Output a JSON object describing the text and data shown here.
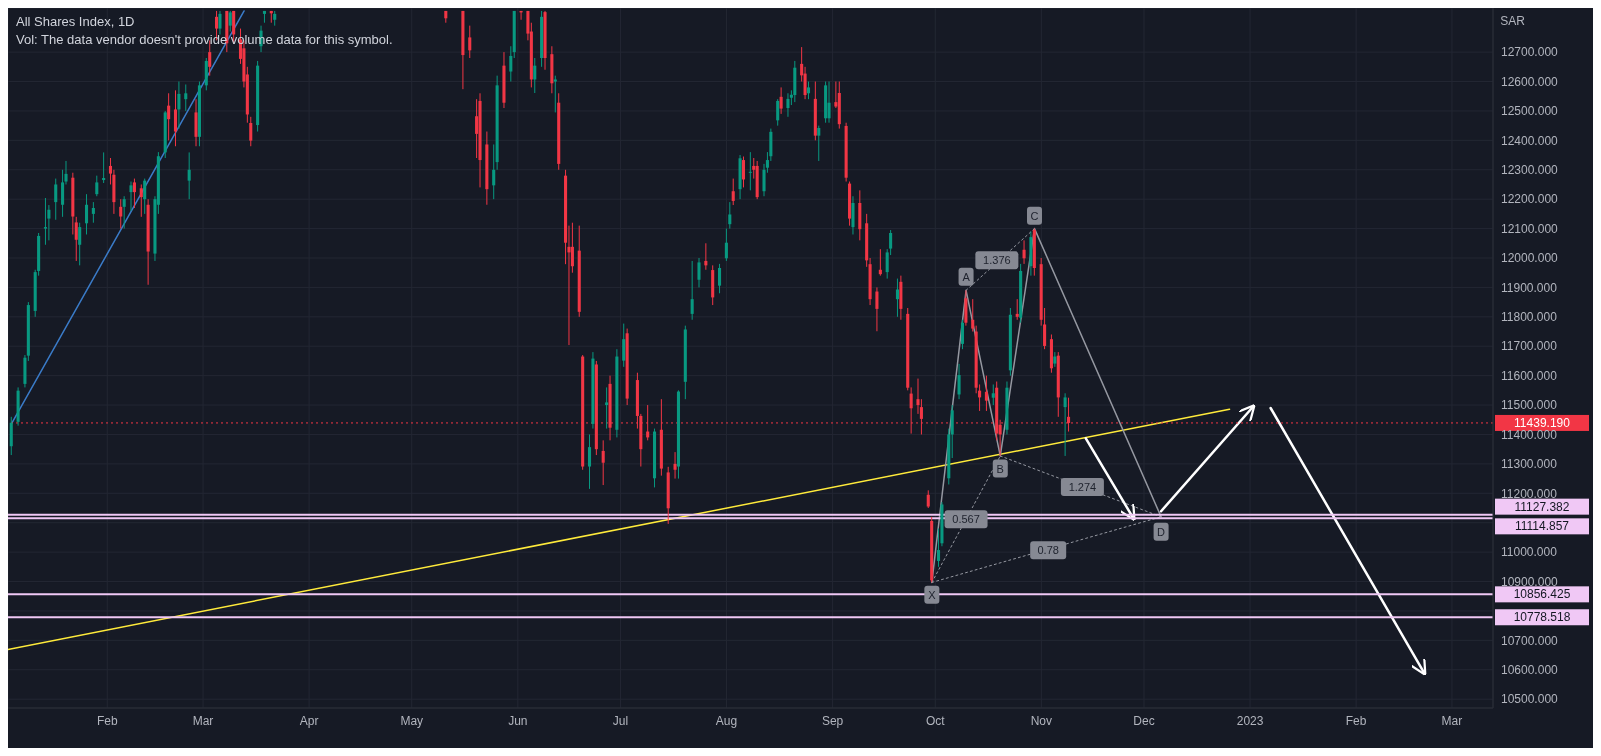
{
  "chart_data": {
    "type": "candlestick",
    "title": "All Shares Index, 1D",
    "subtitle": "Vol: The data vendor doesn't provide volume data for this symbol.",
    "ylabel": "SAR",
    "x": [
      "2022-01-04",
      "2022-01-06",
      "2022-01-08",
      "2022-01-09",
      "2022-01-11",
      "2022-01-12",
      "2022-01-14",
      "2022-01-15",
      "2022-01-17",
      "2022-01-19",
      "2022-01-20",
      "2022-01-22",
      "2022-01-23",
      "2022-01-24",
      "2022-01-26",
      "2022-01-28",
      "2022-01-29",
      "2022-01-31",
      "2022-02-02",
      "2022-02-03",
      "2022-02-05",
      "2022-02-06",
      "2022-02-08",
      "2022-02-09",
      "2022-02-11",
      "2022-02-12",
      "2022-02-13",
      "2022-02-15",
      "2022-02-16",
      "2022-02-18",
      "2022-02-19",
      "2022-02-21",
      "2022-02-22",
      "2022-02-24",
      "2022-02-25",
      "2022-02-27",
      "2022-02-28",
      "2022-03-02",
      "2022-03-03",
      "2022-03-05",
      "2022-03-06",
      "2022-03-08",
      "2022-03-09",
      "2022-03-10",
      "2022-03-12",
      "2022-03-13",
      "2022-03-14",
      "2022-03-15",
      "2022-03-17",
      "2022-03-18",
      "2022-03-19",
      "2022-03-21",
      "2022-03-22",
      "2022-05-11",
      "2022-05-16",
      "2022-05-18",
      "2022-05-20",
      "2022-05-21",
      "2022-05-23",
      "2022-05-25",
      "2022-05-26",
      "2022-05-28",
      "2022-05-30",
      "2022-05-31",
      "2022-06-02",
      "2022-06-04",
      "2022-06-05",
      "2022-06-06",
      "2022-06-08",
      "2022-06-09",
      "2022-06-11",
      "2022-06-12",
      "2022-06-13",
      "2022-06-15",
      "2022-06-16",
      "2022-06-17",
      "2022-06-19",
      "2022-06-20",
      "2022-06-22",
      "2022-06-23",
      "2022-06-24",
      "2022-06-26",
      "2022-06-27",
      "2022-06-28",
      "2022-06-30",
      "2022-07-02",
      "2022-07-03",
      "2022-07-06",
      "2022-07-07",
      "2022-07-09",
      "2022-07-11",
      "2022-07-13",
      "2022-07-15",
      "2022-07-17",
      "2022-07-18",
      "2022-07-20",
      "2022-07-22",
      "2022-07-24",
      "2022-07-26",
      "2022-07-28",
      "2022-07-30",
      "2022-08-01",
      "2022-08-02",
      "2022-08-03",
      "2022-08-05",
      "2022-08-06",
      "2022-08-08",
      "2022-08-09",
      "2022-08-10",
      "2022-08-12",
      "2022-08-13",
      "2022-08-14",
      "2022-08-16",
      "2022-08-17",
      "2022-08-19",
      "2022-08-20",
      "2022-08-21",
      "2022-08-23",
      "2022-08-24",
      "2022-08-25",
      "2022-08-27",
      "2022-08-28",
      "2022-08-30",
      "2022-08-31",
      "2022-09-02",
      "2022-09-03",
      "2022-09-05",
      "2022-09-06",
      "2022-09-07",
      "2022-09-09",
      "2022-09-11",
      "2022-09-12",
      "2022-09-14",
      "2022-09-15",
      "2022-09-17",
      "2022-09-18",
      "2022-09-20",
      "2022-09-21",
      "2022-09-23",
      "2022-09-24",
      "2022-09-26",
      "2022-09-27",
      "2022-09-29",
      "2022-09-30",
      "2022-10-02",
      "2022-10-03",
      "2022-10-05",
      "2022-10-06",
      "2022-10-08",
      "2022-10-09",
      "2022-10-10",
      "2022-10-12",
      "2022-10-13",
      "2022-10-14",
      "2022-10-16",
      "2022-10-18",
      "2022-10-19",
      "2022-10-20",
      "2022-10-22",
      "2022-10-23",
      "2022-10-25",
      "2022-10-26",
      "2022-10-27",
      "2022-10-29",
      "2022-10-30",
      "2022-11-01",
      "2022-11-02",
      "2022-11-04",
      "2022-11-05",
      "2022-11-06",
      "2022-11-08",
      "2022-11-09"
    ],
    "ohlc": [
      [
        11360,
        11460,
        11330,
        11440
      ],
      [
        11443,
        11560,
        11430,
        11549
      ],
      [
        11572,
        11670,
        11560,
        11661
      ],
      [
        11668,
        11850,
        11650,
        11840
      ],
      [
        11820,
        11960,
        11800,
        11952
      ],
      [
        11956,
        12085,
        11940,
        12075
      ],
      [
        12100,
        12204,
        12045,
        12105
      ],
      [
        12134,
        12180,
        12060,
        12164
      ],
      [
        12190,
        12270,
        12130,
        12250
      ],
      [
        12181,
        12300,
        12140,
        12257
      ],
      [
        12260,
        12330,
        12250,
        12286
      ],
      [
        12273,
        12290,
        12080,
        12141
      ],
      [
        12121,
        12140,
        11990,
        12062
      ],
      [
        12045,
        12120,
        11975,
        12105
      ],
      [
        12118,
        12217,
        12080,
        12181
      ],
      [
        12150,
        12190,
        12120,
        12170
      ],
      [
        12217,
        12280,
        12210,
        12257
      ],
      [
        12265,
        12359,
        12255,
        12272
      ],
      [
        12313,
        12340,
        12250,
        12287
      ],
      [
        12283,
        12300,
        12150,
        12190
      ],
      [
        12174,
        12200,
        12100,
        12141
      ],
      [
        12174,
        12210,
        12100,
        12200
      ],
      [
        12224,
        12260,
        12160,
        12247
      ],
      [
        12257,
        12270,
        12170,
        12224
      ],
      [
        12237,
        12250,
        12140,
        12207
      ],
      [
        12200,
        12270,
        12150,
        12263
      ],
      [
        12181,
        12200,
        11909,
        12022
      ],
      [
        12015,
        12210,
        11990,
        12200
      ],
      [
        12181,
        12360,
        12150,
        12346
      ],
      [
        12359,
        12500,
        12340,
        12495
      ],
      [
        12518,
        12560,
        12400,
        12472
      ],
      [
        12505,
        12570,
        12380,
        12430
      ],
      [
        12505,
        12600,
        12440,
        12558
      ],
      [
        12540,
        12590,
        12500,
        12560
      ],
      [
        12263,
        12359,
        12200,
        12300
      ],
      [
        12495,
        12540,
        12380,
        12412
      ],
      [
        12412,
        12600,
        12380,
        12587
      ],
      [
        12587,
        12680,
        12570,
        12670
      ],
      [
        12700,
        12740,
        12620,
        12650
      ],
      [
        12820,
        12840,
        12740,
        12780
      ],
      [
        12780,
        12840,
        12760,
        12830
      ],
      [
        12840,
        12840,
        12700,
        12730
      ],
      [
        12790,
        12840,
        12770,
        12835
      ],
      [
        12840,
        12840,
        12730,
        12760
      ],
      [
        12743,
        12780,
        12660,
        12677
      ],
      [
        12713,
        12740,
        12580,
        12600
      ],
      [
        12624,
        12650,
        12460,
        12488
      ],
      [
        12459,
        12480,
        12380,
        12399
      ],
      [
        12452,
        12670,
        12430,
        12654
      ],
      [
        12720,
        12790,
        12700,
        12773
      ],
      [
        12830,
        12840,
        12800,
        12840
      ],
      [
        12840,
        12840,
        12800,
        12832
      ],
      [
        12810,
        12840,
        12790,
        12830
      ],
      [
        12840,
        12840,
        12800,
        12815
      ],
      [
        12840,
        12840,
        12574,
        12690
      ],
      [
        12750,
        12790,
        12680,
        12706
      ],
      [
        12482,
        12540,
        12340,
        12422
      ],
      [
        12534,
        12560,
        12240,
        12333
      ],
      [
        12386,
        12430,
        12181,
        12234
      ],
      [
        12247,
        12386,
        12200,
        12300
      ],
      [
        12326,
        12620,
        12300,
        12587
      ],
      [
        12654,
        12700,
        12510,
        12528
      ],
      [
        12634,
        12720,
        12600,
        12687
      ],
      [
        12700,
        12840,
        12680,
        12840
      ],
      [
        12840,
        12840,
        12810,
        12835
      ],
      [
        12840,
        12840,
        12740,
        12763
      ],
      [
        12770,
        12800,
        12580,
        12607
      ],
      [
        12607,
        12680,
        12561,
        12654
      ],
      [
        12680,
        12840,
        12650,
        12820
      ],
      [
        12836,
        12840,
        12640,
        12680
      ],
      [
        12693,
        12720,
        12560,
        12594
      ],
      [
        12600,
        12620,
        12495,
        12607
      ],
      [
        12528,
        12560,
        12300,
        12320
      ],
      [
        12280,
        12300,
        11979,
        12052
      ],
      [
        12038,
        12110,
        11704,
        12019
      ],
      [
        12038,
        12120,
        11950,
        11972
      ],
      [
        12025,
        12110,
        11800,
        11817
      ],
      [
        11665,
        11670,
        11280,
        11291
      ],
      [
        11291,
        11400,
        11215,
        11357
      ],
      [
        11436,
        11680,
        11420,
        11658
      ],
      [
        11638,
        11650,
        11330,
        11350
      ],
      [
        11344,
        11380,
        11228,
        11304
      ],
      [
        11500,
        11560,
        11420,
        11509
      ],
      [
        11572,
        11600,
        11380,
        11423
      ],
      [
        11416,
        11690,
        11390,
        11665
      ],
      [
        11651,
        11777,
        11630,
        11724
      ],
      [
        11744,
        11760,
        11500,
        11522
      ],
      [
        11585,
        11610,
        11420,
        11463
      ],
      [
        11463,
        11470,
        11291,
        11350
      ],
      [
        11410,
        11500,
        11380,
        11390
      ],
      [
        11251,
        11420,
        11220,
        11410
      ],
      [
        11416,
        11520,
        11260,
        11284
      ],
      [
        11271,
        11290,
        11096,
        11149
      ],
      [
        11300,
        11340,
        11250,
        11280
      ],
      [
        11291,
        11550,
        11250,
        11546
      ],
      [
        11579,
        11770,
        11520,
        11757
      ],
      [
        11810,
        11990,
        11790,
        11860
      ],
      [
        11926,
        12000,
        11900,
        11985
      ],
      [
        11990,
        12050,
        11960,
        11975
      ],
      [
        11959,
        11975,
        11840,
        11866
      ],
      [
        11906,
        11980,
        11880,
        11966
      ],
      [
        11999,
        12100,
        11990,
        12052
      ],
      [
        12115,
        12190,
        12100,
        12148
      ],
      [
        12227,
        12270,
        12180,
        12194
      ],
      [
        12234,
        12350,
        12200,
        12339
      ],
      [
        12333,
        12345,
        12240,
        12267
      ],
      [
        12290,
        12360,
        12230,
        12293
      ],
      [
        12313,
        12340,
        12270,
        12300
      ],
      [
        12313,
        12330,
        12200,
        12207
      ],
      [
        12227,
        12320,
        12210,
        12300
      ],
      [
        12307,
        12360,
        12290,
        12333
      ],
      [
        12346,
        12440,
        12330,
        12429
      ],
      [
        12468,
        12540,
        12450,
        12534
      ],
      [
        12548,
        12580,
        12490,
        12508
      ],
      [
        12510,
        12560,
        12480,
        12541
      ],
      [
        12545,
        12570,
        12520,
        12555
      ],
      [
        12554,
        12670,
        12530,
        12647
      ],
      [
        12660,
        12717,
        12600,
        12621
      ],
      [
        12627,
        12650,
        12540,
        12554
      ],
      [
        12560,
        12600,
        12540,
        12580
      ],
      [
        12541,
        12600,
        12400,
        12416
      ],
      [
        12416,
        12450,
        12330,
        12442
      ],
      [
        12475,
        12600,
        12460,
        12587
      ],
      [
        12475,
        12600,
        12460,
        12528
      ],
      [
        12530,
        12600,
        12510,
        12515
      ],
      [
        12561,
        12600,
        12440,
        12455
      ],
      [
        12449,
        12460,
        12260,
        12273
      ],
      [
        12253,
        12260,
        12110,
        12134
      ],
      [
        12105,
        12210,
        12080,
        12187
      ],
      [
        12187,
        12230,
        12060,
        12098
      ],
      [
        12118,
        12150,
        11970,
        11992
      ],
      [
        11979,
        12000,
        11840,
        11860
      ],
      [
        11886,
        11900,
        11751,
        11827
      ],
      [
        11960,
        12030,
        11940,
        11945
      ],
      [
        11952,
        12030,
        11930,
        12019
      ],
      [
        12032,
        12095,
        12010,
        12085
      ],
      [
        11860,
        11930,
        11800,
        11893
      ],
      [
        11919,
        11940,
        11790,
        11827
      ],
      [
        11810,
        11830,
        11550,
        11559
      ],
      [
        11539,
        11560,
        11403,
        11489
      ],
      [
        11520,
        11590,
        11470,
        11500
      ],
      [
        11493,
        11520,
        11400,
        11453
      ],
      [
        11195,
        11210,
        11150,
        11155
      ],
      [
        11106,
        11120,
        10897,
        10904
      ],
      [
        10970,
        11080,
        10950,
        11007
      ],
      [
        11030,
        11170,
        11020,
        11162
      ],
      [
        11251,
        11420,
        11230,
        11400
      ],
      [
        11400,
        11500,
        11320,
        11482
      ],
      [
        11536,
        11640,
        11520,
        11602
      ],
      [
        11708,
        11790,
        11690,
        11780
      ],
      [
        11863,
        11890,
        11770,
        11780
      ],
      [
        11790,
        11860,
        11750,
        11760
      ],
      [
        11750,
        11770,
        11540,
        11559
      ],
      [
        11549,
        11570,
        11480,
        11526
      ],
      [
        11545,
        11600,
        11480,
        11515
      ],
      [
        11525,
        11570,
        11500,
        11540
      ],
      [
        11559,
        11580,
        11380,
        11403
      ],
      [
        11433,
        11450,
        11327,
        11400
      ],
      [
        11416,
        11580,
        11400,
        11559
      ],
      [
        11618,
        11830,
        11600,
        11807
      ],
      [
        11810,
        11860,
        11790,
        11800
      ],
      [
        11797,
        11980,
        11780,
        11956
      ],
      [
        12028,
        12060,
        11980,
        11999
      ],
      [
        11972,
        12090,
        11940,
        12071
      ],
      [
        12095,
        12100,
        11940,
        11966
      ],
      [
        11979,
        12000,
        11770,
        11790
      ],
      [
        11774,
        11830,
        11690,
        11701
      ],
      [
        11724,
        11740,
        11610,
        11625
      ],
      [
        11641,
        11680,
        11630,
        11665
      ],
      [
        11668,
        11680,
        11460,
        11526
      ],
      [
        11493,
        11540,
        11327,
        11526
      ],
      [
        11460,
        11525,
        11410,
        11439.19
      ]
    ],
    "colors": [
      "#089981",
      "#089981",
      "#089981",
      "#089981",
      "#089981",
      "#089981",
      "#089981",
      "#089981",
      "#089981",
      "#089981",
      "#089981",
      "#f23645",
      "#f23645",
      "#089981",
      "#089981",
      "#089981",
      "#089981",
      "#089981",
      "#f23645",
      "#f23645",
      "#f23645",
      "#089981",
      "#089981",
      "#f23645",
      "#f23645",
      "#089981",
      "#f23645",
      "#089981",
      "#089981",
      "#089981",
      "#f23645",
      "#f23645",
      "#089981",
      "#089981",
      "#089981",
      "#f23645",
      "#089981",
      "#089981",
      "#f23645",
      "#f23645",
      "#089981",
      "#f23645",
      "#089981",
      "#f23645",
      "#f23645",
      "#f23645",
      "#f23645",
      "#f23645",
      "#089981",
      "#089981",
      "#089981",
      "#f23645",
      "#089981",
      "#f23645",
      "#f23645",
      "#f23645",
      "#f23645",
      "#f23645",
      "#f23645",
      "#089981",
      "#089981",
      "#f23645",
      "#089981",
      "#089981",
      "#f23645",
      "#f23645",
      "#f23645",
      "#089981",
      "#089981",
      "#f23645",
      "#f23645",
      "#089981",
      "#f23645",
      "#f23645",
      "#f23645",
      "#f23645",
      "#f23645",
      "#f23645",
      "#089981",
      "#089981",
      "#f23645",
      "#f23645",
      "#089981",
      "#f23645",
      "#089981",
      "#089981",
      "#f23645",
      "#f23645",
      "#f23645",
      "#f23645",
      "#089981",
      "#f23645",
      "#f23645",
      "#f23645",
      "#089981",
      "#089981",
      "#089981",
      "#089981",
      "#f23645",
      "#f23645",
      "#089981",
      "#089981",
      "#089981",
      "#f23645",
      "#089981",
      "#f23645",
      "#089981",
      "#f23645",
      "#f23645",
      "#089981",
      "#089981",
      "#089981",
      "#089981",
      "#f23645",
      "#089981",
      "#089981",
      "#089981",
      "#f23645",
      "#f23645",
      "#089981",
      "#f23645",
      "#089981",
      "#089981",
      "#089981",
      "#f23645",
      "#f23645",
      "#f23645",
      "#f23645",
      "#089981",
      "#f23645",
      "#f23645",
      "#f23645",
      "#f23645",
      "#f23645",
      "#089981",
      "#089981",
      "#089981",
      "#f23645",
      "#f23645",
      "#f23645",
      "#f23645",
      "#f23645",
      "#f23645",
      "#f23645",
      "#089981",
      "#089981",
      "#089981",
      "#089981",
      "#089981",
      "#089981",
      "#f23645",
      "#f23645",
      "#f23645",
      "#f23645",
      "#f23645",
      "#089981",
      "#f23645",
      "#f23645",
      "#089981",
      "#089981",
      "#f23645",
      "#089981",
      "#f23645",
      "#089981",
      "#f23645",
      "#f23645",
      "#f23645",
      "#f23645",
      "#089981",
      "#f23645",
      "#089981",
      "#f23645"
    ],
    "series": [
      {
        "type": "line",
        "color": "#ffeb3b",
        "x": [
          "2022-01-03",
          "2022-12-26"
        ],
        "values": [
          10669,
          11486
        ]
      },
      {
        "type": "line",
        "color": "#3a7bc8",
        "x": [
          "2022-01-04",
          "2022-03-13"
        ],
        "values": [
          11436,
          12840
        ]
      },
      {
        "type": "line",
        "color": "#9598a1",
        "x": [
          "2022-09-30",
          "2022-10-10",
          "2022-10-20",
          "2022-10-30",
          "2022-12-06"
        ],
        "values": [
          10897,
          11890,
          11327,
          12100,
          11120
        ]
      },
      {
        "type": "line",
        "color": "#9598a1",
        "line_style": "dotted",
        "x": [
          "2022-09-30",
          "2022-10-20"
        ],
        "values": [
          10897,
          11327
        ]
      },
      {
        "type": "line",
        "color": "#9598a1",
        "line_style": "dotted",
        "x": [
          "2022-10-10",
          "2022-10-30"
        ],
        "values": [
          11890,
          12100
        ]
      },
      {
        "type": "line",
        "color": "#9598a1",
        "line_style": "dotted",
        "x": [
          "2022-10-20",
          "2022-12-06"
        ],
        "values": [
          11327,
          11120
        ]
      },
      {
        "type": "line",
        "color": "#9598a1",
        "line_style": "dotted",
        "x": [
          "2022-09-30",
          "2022-12-06"
        ],
        "values": [
          10897,
          11120
        ]
      },
      {
        "type": "line",
        "line_style": "solid",
        "color": "#ffffff",
        "x": [
          "2022-11-14",
          "2022-11-28"
        ],
        "values": [
          11387,
          11113
        ]
      },
      {
        "type": "line",
        "line_style": "solid",
        "color": "#ffffff",
        "x": [
          "2022-12-06",
          "2023-01-02"
        ],
        "values": [
          11139,
          11496
        ]
      },
      {
        "type": "line",
        "line_style": "solid",
        "color": "#ffffff",
        "x": [
          "2023-01-07",
          "2023-02-21"
        ],
        "values": [
          11490,
          10587
        ]
      }
    ],
    "ref_lines": [
      {
        "axis": "y",
        "value": 11439.19,
        "label": "11439.190",
        "color": "#f23645",
        "line_style": "dotted"
      },
      {
        "axis": "y",
        "value": 11127.382,
        "label": "11127.382",
        "color": "#f0c8f5"
      },
      {
        "axis": "y",
        "value": 11114.857,
        "label": "11114.857",
        "color": "#f0c8f5"
      },
      {
        "axis": "y",
        "value": 10856.425,
        "label": "10856.425",
        "color": "#f0c8f5"
      },
      {
        "axis": "y",
        "value": 10778.518,
        "label": "10778.518",
        "color": "#f0c8f5"
      }
    ],
    "annotations": [
      {
        "text": "X",
        "x": "2022-09-30",
        "y": 10855
      },
      {
        "text": "A",
        "x": "2022-10-10",
        "y": 11936
      },
      {
        "text": "B",
        "x": "2022-10-20",
        "y": 11284
      },
      {
        "text": "C",
        "x": "2022-10-30",
        "y": 12144
      },
      {
        "text": "D",
        "x": "2022-12-06",
        "y": 11069
      },
      {
        "text": "1.376",
        "x": "2022-10-19",
        "y": 11992
      },
      {
        "text": "0.567",
        "x": "2022-10-10",
        "y": 11112
      },
      {
        "text": "1.274",
        "x": "2022-11-13",
        "y": 11221
      },
      {
        "text": "0.78",
        "x": "2022-11-03",
        "y": 11006
      }
    ],
    "xlim": [
      "2022-01-03",
      "2023-03-13"
    ],
    "xticks": [
      {
        "value": "2022-02-01",
        "label": "Feb"
      },
      {
        "value": "2022-03-01",
        "label": "Mar"
      },
      {
        "value": "2022-04-01",
        "label": "Apr"
      },
      {
        "value": "2022-05-01",
        "label": "May"
      },
      {
        "value": "2022-06-01",
        "label": "Jun"
      },
      {
        "value": "2022-07-01",
        "label": "Jul"
      },
      {
        "value": "2022-08-01",
        "label": "Aug"
      },
      {
        "value": "2022-09-01",
        "label": "Sep"
      },
      {
        "value": "2022-10-01",
        "label": "Oct"
      },
      {
        "value": "2022-11-01",
        "label": "Nov"
      },
      {
        "value": "2022-12-01",
        "label": "Dec"
      },
      {
        "value": "2023-01-01",
        "label": "2023"
      },
      {
        "value": "2023-02-01",
        "label": "Feb"
      },
      {
        "value": "2023-03-01",
        "label": "Mar"
      }
    ],
    "ylim": [
      10470,
      12850
    ],
    "yticks": [
      {
        "value": 10500,
        "label": "10500.000"
      },
      {
        "value": 10600,
        "label": "10600.000"
      },
      {
        "value": 10700,
        "label": "10700.000"
      },
      {
        "value": 10800,
        "label": null
      },
      {
        "value": 10900,
        "label": "10900.000"
      },
      {
        "value": 11000,
        "label": "11000.000"
      },
      {
        "value": 11100,
        "label": null
      },
      {
        "value": 11200,
        "label": "11200.000"
      },
      {
        "value": 11300,
        "label": "11300.000"
      },
      {
        "value": 11400,
        "label": "11400.000"
      },
      {
        "value": 11500,
        "label": "11500.000"
      },
      {
        "value": 11600,
        "label": "11600.000"
      },
      {
        "value": 11700,
        "label": "11700.000"
      },
      {
        "value": 11800,
        "label": "11800.000"
      },
      {
        "value": 11900,
        "label": "11900.000"
      },
      {
        "value": 12000,
        "label": "12000.000"
      },
      {
        "value": 12100,
        "label": "12100.000"
      },
      {
        "value": 12200,
        "label": "12200.000"
      },
      {
        "value": 12300,
        "label": "12300.000"
      },
      {
        "value": 12400,
        "label": "12400.000"
      },
      {
        "value": 12500,
        "label": "12500.000"
      },
      {
        "value": 12600,
        "label": "12600.000"
      },
      {
        "value": 12700,
        "label": "12700.000"
      }
    ],
    "grid": true
  }
}
